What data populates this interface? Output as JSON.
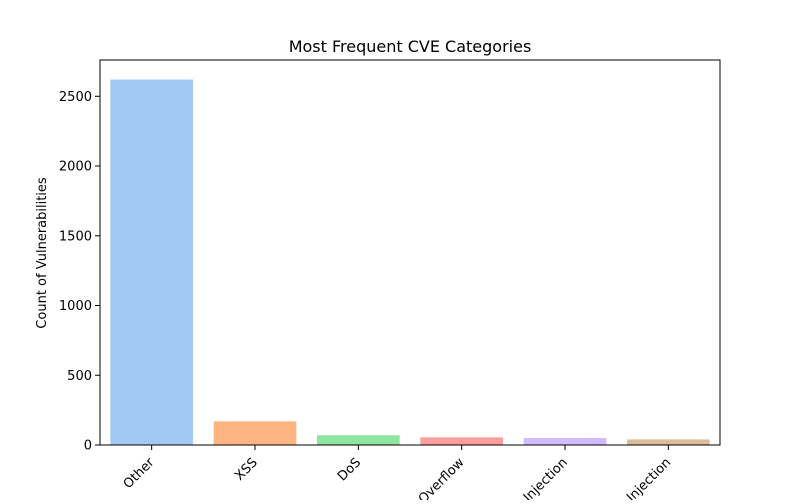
{
  "chart_data": {
    "type": "bar",
    "title": "Most Frequent CVE Categories",
    "xlabel": "",
    "ylabel": "Count of Vulnerabilities",
    "categories": [
      "Other",
      "XSS",
      "DoS",
      "Overflow",
      "Injection",
      "Injection"
    ],
    "values": [
      2620,
      170,
      70,
      55,
      50,
      40
    ],
    "colors": [
      "#a1c9f4",
      "#ffb482",
      "#8de5a1",
      "#ff9f9b",
      "#d0bbff",
      "#debb9b"
    ],
    "ylim": [
      0,
      2760
    ],
    "yticks": [
      0,
      500,
      1000,
      1500,
      2000,
      2500
    ],
    "grid": false,
    "legend": "none"
  }
}
